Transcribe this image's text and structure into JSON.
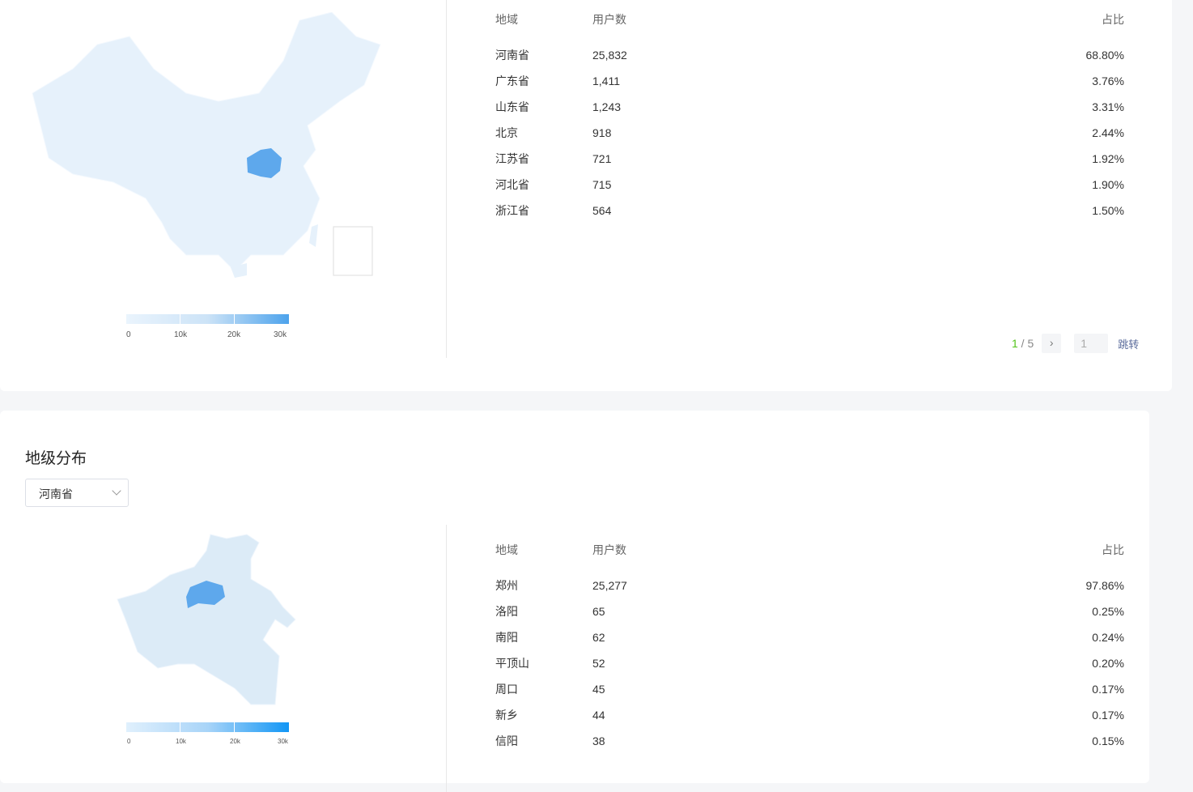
{
  "province": {
    "headers": [
      "地域",
      "用户数",
      "占比"
    ],
    "rows": [
      [
        "河南省",
        "25,832",
        "68.80%"
      ],
      [
        "广东省",
        "1,411",
        "3.76%"
      ],
      [
        "山东省",
        "1,243",
        "3.31%"
      ],
      [
        "北京",
        "918",
        "2.44%"
      ],
      [
        "江苏省",
        "721",
        "1.92%"
      ],
      [
        "河北省",
        "715",
        "1.90%"
      ],
      [
        "浙江省",
        "564",
        "1.50%"
      ]
    ],
    "legend": [
      "0",
      "10k",
      "20k",
      "30k"
    ],
    "pager": {
      "current": "1",
      "total": "5",
      "separator": " / ",
      "input": "1",
      "jump": "跳转"
    },
    "highlight": "河南省"
  },
  "city": {
    "title": "地级分布",
    "select": "河南省",
    "headers": [
      "地域",
      "用户数",
      "占比"
    ],
    "rows": [
      [
        "郑州",
        "25,277",
        "97.86%"
      ],
      [
        "洛阳",
        "65",
        "0.25%"
      ],
      [
        "南阳",
        "62",
        "0.24%"
      ],
      [
        "平顶山",
        "52",
        "0.20%"
      ],
      [
        "周口",
        "45",
        "0.17%"
      ],
      [
        "新乡",
        "44",
        "0.17%"
      ],
      [
        "信阳",
        "38",
        "0.15%"
      ]
    ],
    "legend": [
      "0",
      "10k",
      "20k",
      "30k"
    ],
    "highlight": "郑州"
  },
  "colors": {
    "map_base": "#e6f1fb",
    "map_high": "#5ea8ec",
    "accent": "#52c41a"
  }
}
